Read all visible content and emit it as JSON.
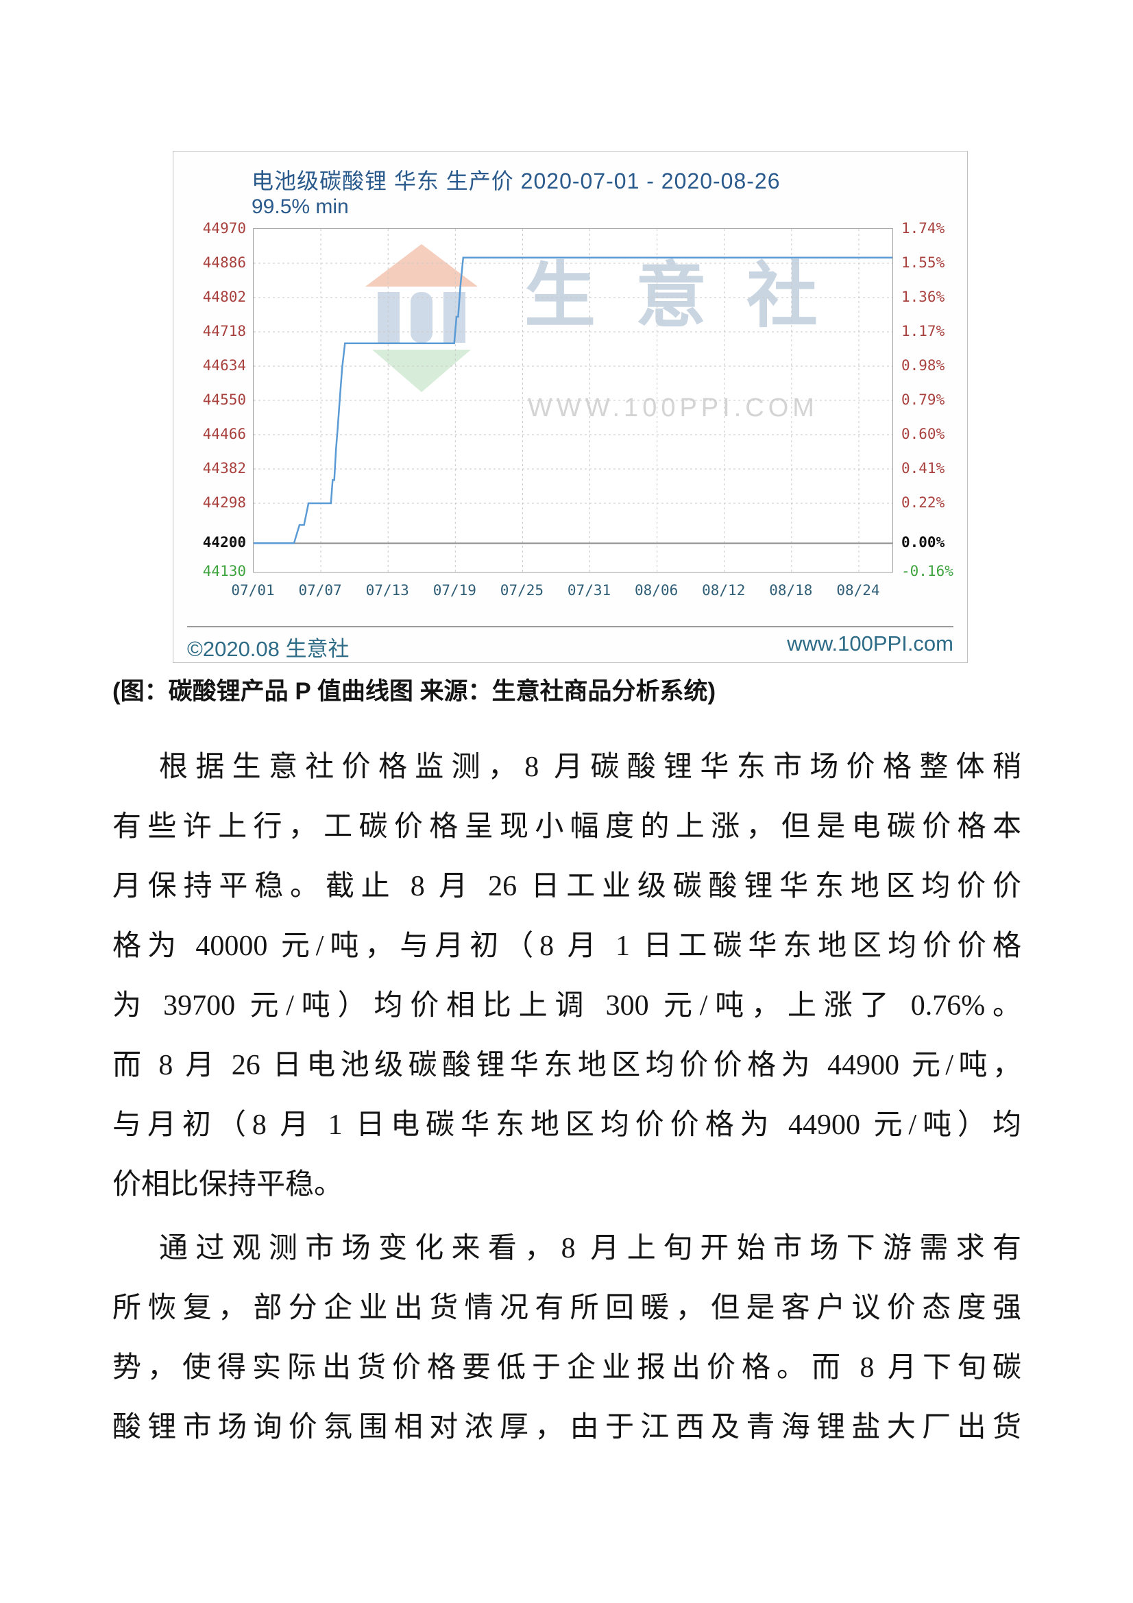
{
  "chart": {
    "title": "电池级碳酸锂 华东 生产价 2020-07-01 - 2020-08-26",
    "subtitle": "99.5% min",
    "footer_left": "©2020.08 生意社",
    "footer_right": "www.100PPI.com",
    "watermark": {
      "brand": "生意社",
      "url": "WWW.100PPI.COM",
      "logo": "100ppi-logo"
    },
    "colors": {
      "title": "#2a5a8c",
      "axis_red": "#a8413e",
      "axis_black": "#111111",
      "axis_green": "#3fa33f",
      "dates": "#2e5d75",
      "line": "#5b9bd5",
      "grid": "#c9c9c9",
      "baseline": "#8f8f8f",
      "footer": "#2d6b86",
      "border": "#c2c2c2"
    }
  },
  "chart_data": {
    "type": "line",
    "title": "电池级碳酸锂 华东 生产价 2020-07-01 - 2020-08-26",
    "subtitle": "99.5% min",
    "legend_position": "none",
    "grid": true,
    "x_tick_labels": [
      "07/01",
      "07/07",
      "07/13",
      "07/19",
      "07/25",
      "07/31",
      "08/06",
      "08/12",
      "08/18",
      "08/24"
    ],
    "x_tick_days": [
      0,
      6,
      12,
      18,
      24,
      30,
      36,
      42,
      48,
      54
    ],
    "x_range_days": [
      0,
      57
    ],
    "ylim": [
      44130,
      44970
    ],
    "y_tick_values": [
      44970,
      44886,
      44802,
      44718,
      44634,
      44550,
      44466,
      44382,
      44298,
      44200,
      44130
    ],
    "y_tick_price_labels": [
      "44970",
      "44886",
      "44802",
      "44718",
      "44634",
      "44550",
      "44466",
      "44382",
      "44298",
      "44200",
      "44130"
    ],
    "y_tick_pct_labels": [
      "1.74%",
      "1.55%",
      "1.36%",
      "1.17%",
      "0.98%",
      "0.79%",
      "0.60%",
      "0.41%",
      "0.22%",
      "0.00%",
      "-0.16%"
    ],
    "y_tick_roles": [
      "up",
      "up",
      "up",
      "up",
      "up",
      "up",
      "up",
      "up",
      "up",
      "base",
      "min"
    ],
    "baseline_value": 44200,
    "series": [
      {
        "name": "电池级碳酸锂 华东 生产价",
        "color": "#5b9bd5",
        "points": [
          [
            0,
            44200
          ],
          [
            3.6,
            44200
          ],
          [
            4.1,
            44245
          ],
          [
            4.5,
            44245
          ],
          [
            4.9,
            44298
          ],
          [
            6.9,
            44298
          ],
          [
            7.05,
            44355
          ],
          [
            7.2,
            44355
          ],
          [
            7.35,
            44430
          ],
          [
            7.5,
            44480
          ],
          [
            7.6,
            44520
          ],
          [
            7.75,
            44575
          ],
          [
            7.9,
            44630
          ],
          [
            8.15,
            44690
          ],
          [
            17.9,
            44690
          ],
          [
            18.1,
            44755
          ],
          [
            18.25,
            44755
          ],
          [
            18.45,
            44830
          ],
          [
            18.7,
            44900
          ],
          [
            57,
            44900
          ]
        ]
      }
    ]
  },
  "caption": "(图：碳酸锂产品 P 值曲线图 来源：生意社商品分析系统)",
  "article": {
    "paragraphs": [
      {
        "indent": true,
        "short_last": true,
        "lines": [
          "根据生意社价格监测，8 月碳酸锂华东市场价格整体稍",
          "有些许上行，工碳价格呈现小幅度的上涨，但是电碳价格本",
          "月保持平稳。截止 8 月 26 日工业级碳酸锂华东地区均价价",
          "格为 40000 元/吨，与月初（8 月 1 日工碳华东地区均价价格",
          "为 39700 元/吨）均价相比上调 300 元/吨，上涨了 0.76%。",
          "而 8 月 26 日电池级碳酸锂华东地区均价价格为 44900 元/吨，",
          "与月初（8 月 1 日电碳华东地区均价价格为 44900 元/吨）均",
          "价相比保持平稳。"
        ]
      },
      {
        "indent": true,
        "short_last": false,
        "lines": [
          "通过观测市场变化来看，8 月上旬开始市场下游需求有",
          "所恢复，部分企业出货情况有所回暖，但是客户议价态度强",
          "势，使得实际出货价格要低于企业报出价格。而 8 月下旬碳",
          "酸锂市场询价氛围相对浓厚，由于江西及青海锂盐大厂出货"
        ]
      }
    ]
  }
}
